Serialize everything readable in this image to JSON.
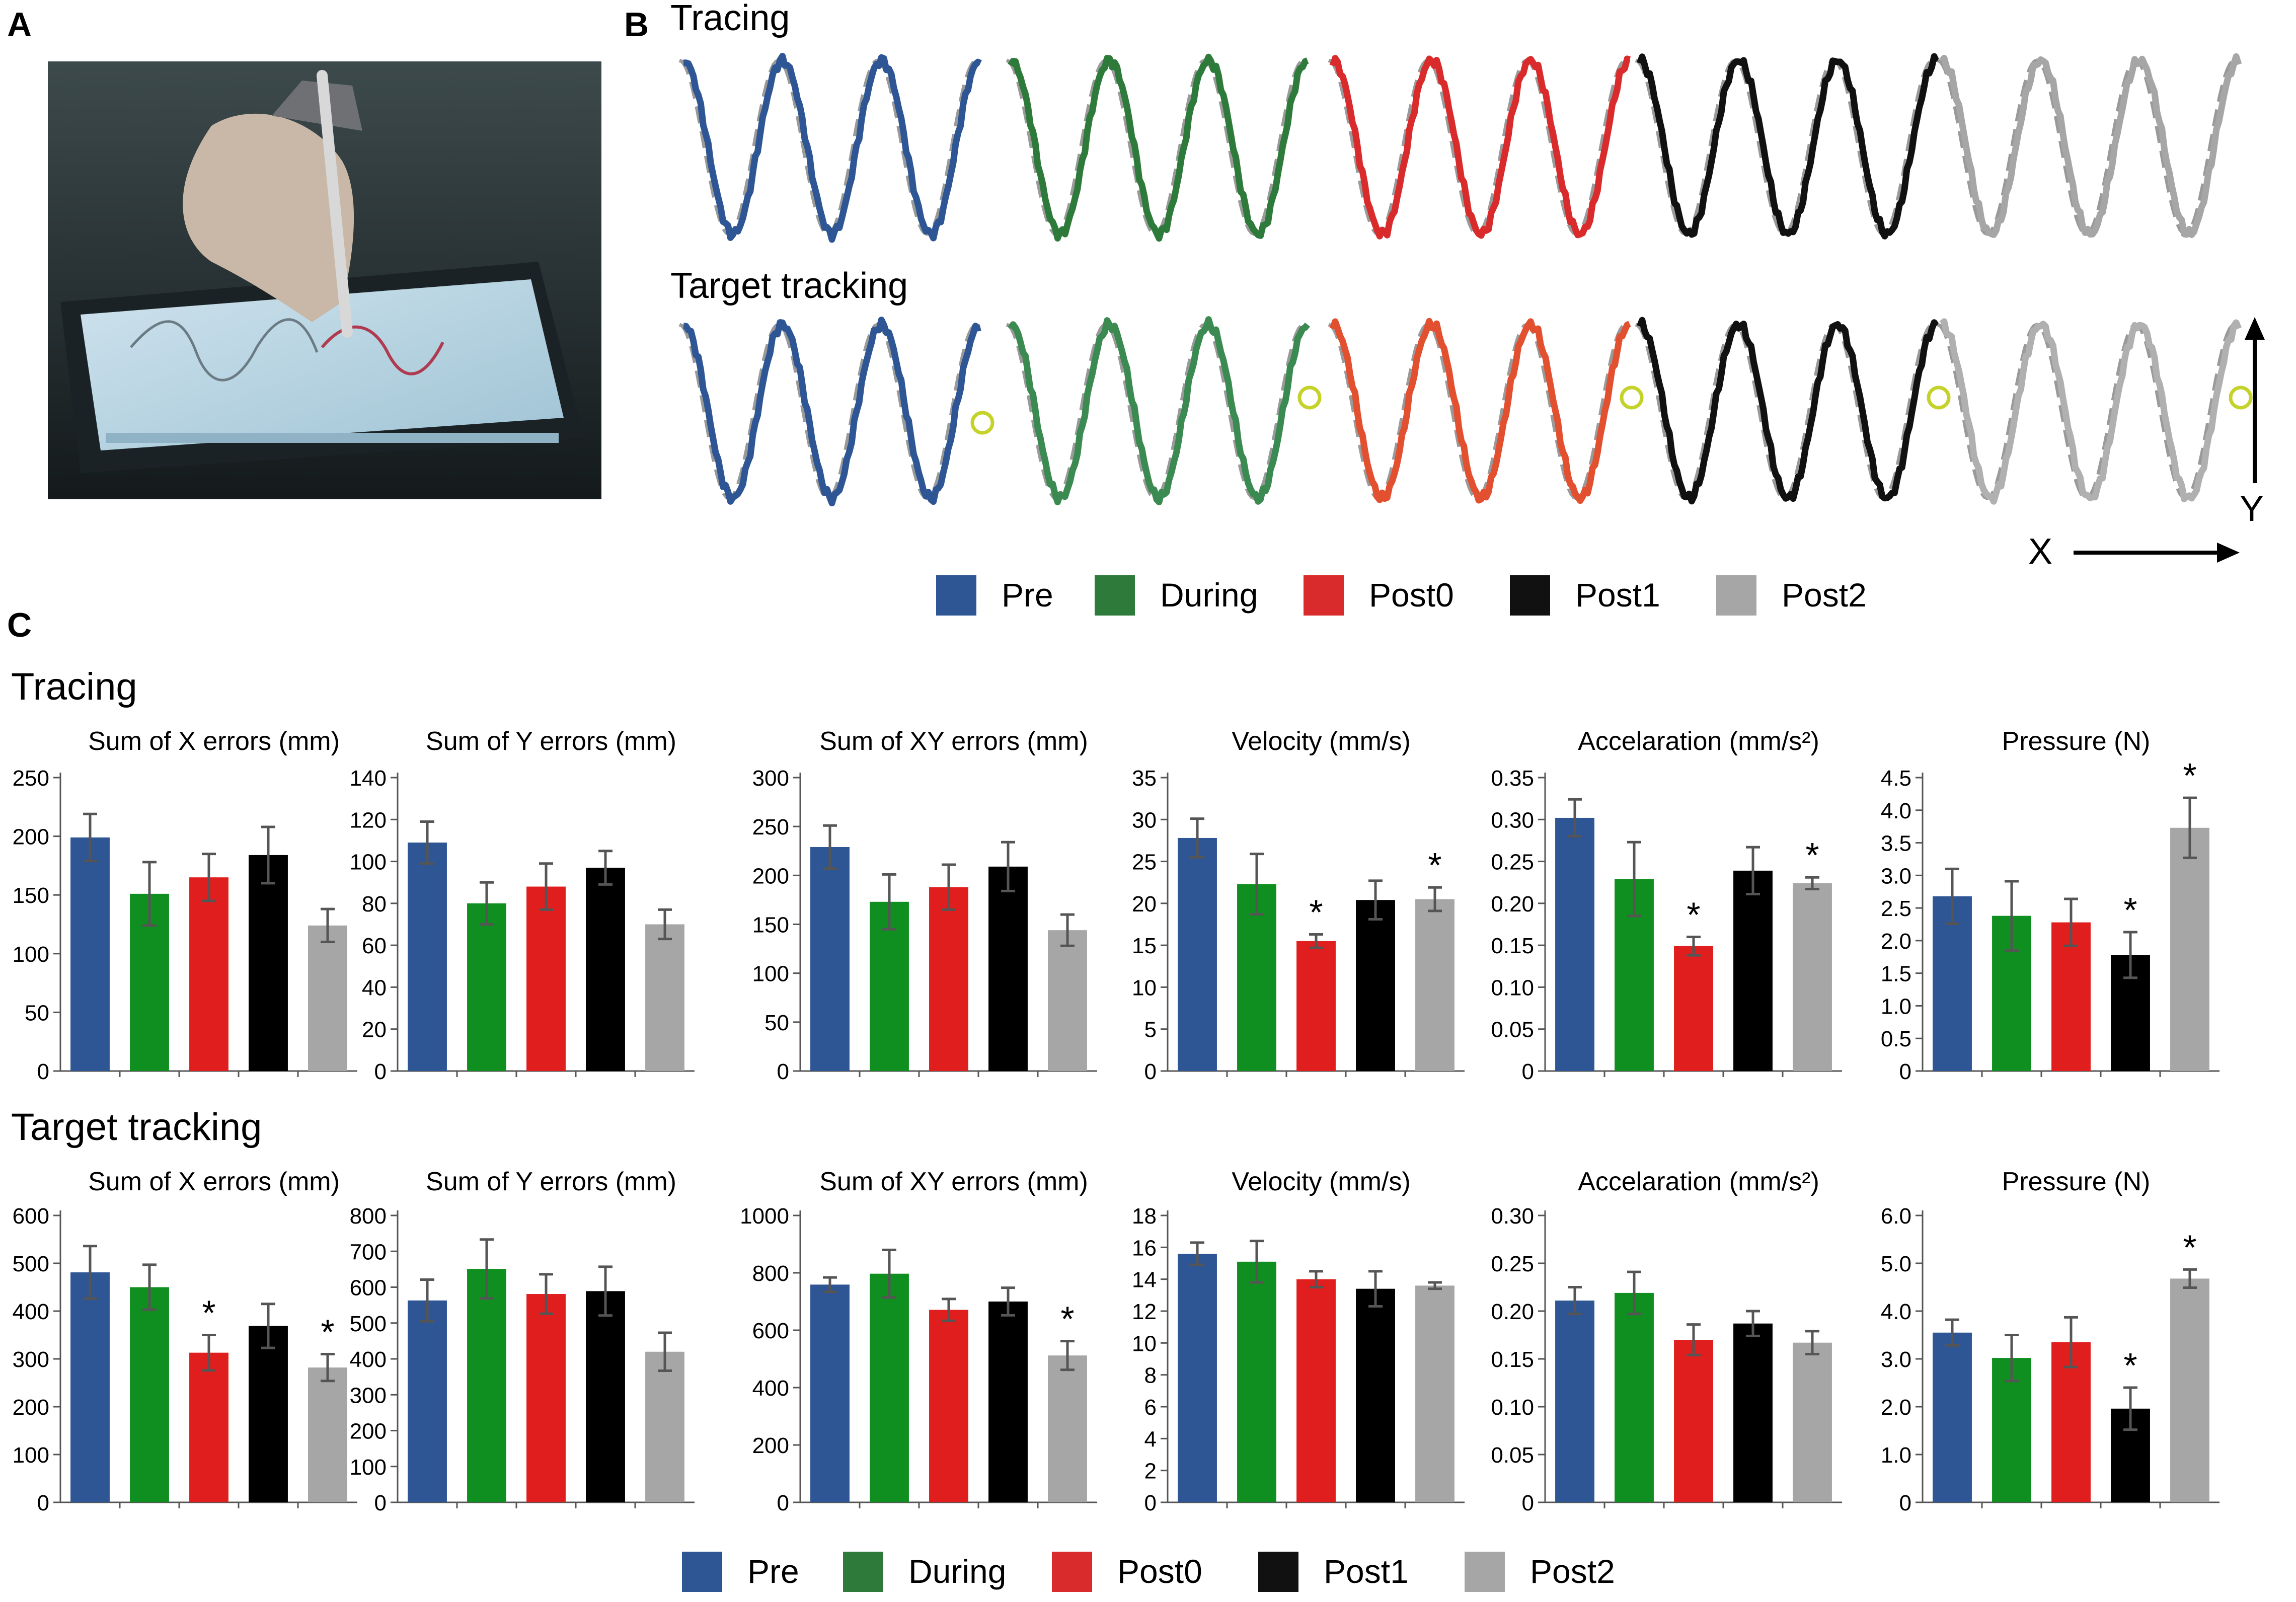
{
  "panels": {
    "a_label": "A",
    "b_label": "B",
    "c_label": "C",
    "b_tracing_title": "Tracing",
    "b_target_title": "Target tracking",
    "c_tracing_title": "Tracing",
    "c_target_title": "Target tracking",
    "axis_x": "X",
    "axis_y": "Y"
  },
  "conditions": [
    {
      "name": "Pre",
      "color": "#2e5594"
    },
    {
      "name": "During",
      "color": "#2d7a3a"
    },
    {
      "name": "Post0",
      "color": "#d92b2b"
    },
    {
      "name": "Post1",
      "color": "#111111"
    },
    {
      "name": "Post2",
      "color": "#a6a6a6"
    }
  ],
  "bar_colors": [
    "#2e5594",
    "#0f8f1f",
    "#e01e1e",
    "#000000",
    "#a6a6a6"
  ],
  "chart_data": [
    {
      "type": "bar",
      "row": "Tracing",
      "title": "Sum of  X errors (mm)",
      "ylim": [
        0,
        250
      ],
      "ticks": [
        "0",
        "50",
        "100",
        "150",
        "200",
        "250"
      ],
      "categories": [
        "Pre",
        "During",
        "Post0",
        "Post1",
        "Post2"
      ],
      "values": [
        199,
        151,
        165,
        184,
        124
      ],
      "errors": [
        20,
        27,
        20,
        24,
        14
      ],
      "significant": [
        false,
        false,
        false,
        false,
        false
      ]
    },
    {
      "type": "bar",
      "row": "Tracing",
      "title": "Sum of  Y errors (mm)",
      "ylim": [
        0,
        140
      ],
      "ticks": [
        "0",
        "20",
        "40",
        "60",
        "80",
        "100",
        "120",
        "140"
      ],
      "categories": [
        "Pre",
        "During",
        "Post0",
        "Post1",
        "Post2"
      ],
      "values": [
        109,
        80,
        88,
        97,
        70
      ],
      "errors": [
        10,
        10,
        11,
        8,
        7
      ],
      "significant": [
        false,
        false,
        false,
        false,
        false
      ]
    },
    {
      "type": "bar",
      "row": "Tracing",
      "title": "Sum of  XY errors (mm)",
      "ylim": [
        0,
        300
      ],
      "ticks": [
        "0",
        "50",
        "100",
        "150",
        "200",
        "250",
        "300"
      ],
      "categories": [
        "Pre",
        "During",
        "Post0",
        "Post1",
        "Post2"
      ],
      "values": [
        229,
        173,
        188,
        209,
        144
      ],
      "errors": [
        22,
        28,
        23,
        25,
        16
      ],
      "significant": [
        false,
        false,
        false,
        false,
        false
      ]
    },
    {
      "type": "bar",
      "row": "Tracing",
      "title": "Velocity (mm/s)",
      "ylim": [
        0,
        35
      ],
      "ticks": [
        "0",
        "5",
        "10",
        "15",
        "20",
        "25",
        "30",
        "35"
      ],
      "categories": [
        "Pre",
        "During",
        "Post0",
        "Post1",
        "Post2"
      ],
      "values": [
        27.8,
        22.3,
        15.5,
        20.4,
        20.5
      ],
      "errors": [
        2.3,
        3.6,
        0.8,
        2.3,
        1.4
      ],
      "significant": [
        false,
        false,
        true,
        false,
        true
      ]
    },
    {
      "type": "bar",
      "row": "Tracing",
      "title": "Accelaration (mm/s²)",
      "ylim": [
        0,
        0.35
      ],
      "ticks": [
        "0",
        "0.05",
        "0.10",
        "0.15",
        "0.20",
        "0.25",
        "0.30",
        "0.35"
      ],
      "categories": [
        "Pre",
        "During",
        "Post0",
        "Post1",
        "Post2"
      ],
      "values": [
        0.302,
        0.229,
        0.149,
        0.239,
        0.224
      ],
      "errors": [
        0.022,
        0.044,
        0.011,
        0.028,
        0.007
      ],
      "significant": [
        false,
        false,
        true,
        false,
        true
      ]
    },
    {
      "type": "bar",
      "row": "Tracing",
      "title": "Pressure (N)",
      "ylim": [
        0,
        4.5
      ],
      "ticks": [
        "0",
        "0.5",
        "1.0",
        "1.5",
        "2.0",
        "2.5",
        "3.0",
        "3.5",
        "4.0",
        "4.5"
      ],
      "categories": [
        "Pre",
        "During",
        "Post0",
        "Post1",
        "Post2"
      ],
      "values": [
        2.68,
        2.38,
        2.28,
        1.78,
        3.73
      ],
      "errors": [
        0.42,
        0.53,
        0.36,
        0.35,
        0.46
      ],
      "significant": [
        false,
        false,
        false,
        true,
        true
      ]
    },
    {
      "type": "bar",
      "row": "Target tracking",
      "title": "Sum of  X errors (mm)",
      "ylim": [
        0,
        600
      ],
      "ticks": [
        "0",
        "100",
        "200",
        "300",
        "400",
        "500",
        "600"
      ],
      "categories": [
        "Pre",
        "During",
        "Post0",
        "Post1",
        "Post2"
      ],
      "values": [
        481,
        450,
        313,
        369,
        282
      ],
      "errors": [
        55,
        47,
        37,
        46,
        28
      ],
      "significant": [
        false,
        false,
        true,
        false,
        true
      ]
    },
    {
      "type": "bar",
      "row": "Target tracking",
      "title": "Sum of  Y errors (mm)",
      "ylim": [
        0,
        800
      ],
      "ticks": [
        "0",
        "100",
        "200",
        "300",
        "400",
        "500",
        "600",
        "700",
        "800"
      ],
      "categories": [
        "Pre",
        "During",
        "Post0",
        "Post1",
        "Post2"
      ],
      "values": [
        563,
        651,
        581,
        589,
        420
      ],
      "errors": [
        58,
        82,
        55,
        68,
        53
      ],
      "significant": [
        false,
        false,
        false,
        false,
        false
      ]
    },
    {
      "type": "bar",
      "row": "Target tracking",
      "title": "Sum of  XY errors (mm)",
      "ylim": [
        0,
        1000
      ],
      "ticks": [
        "0",
        "200",
        "400",
        "600",
        "800",
        "1000"
      ],
      "categories": [
        "Pre",
        "During",
        "Post0",
        "Post1",
        "Post2"
      ],
      "values": [
        759,
        797,
        671,
        700,
        512
      ],
      "errors": [
        25,
        83,
        38,
        48,
        50
      ],
      "significant": [
        false,
        false,
        false,
        false,
        true
      ]
    },
    {
      "type": "bar",
      "row": "Target tracking",
      "title": "Velocity (mm/s)",
      "ylim": [
        0,
        18
      ],
      "ticks": [
        "0",
        "2",
        "4",
        "6",
        "8",
        "10",
        "12",
        "14",
        "16",
        "18"
      ],
      "categories": [
        "Pre",
        "During",
        "Post0",
        "Post1",
        "Post2"
      ],
      "values": [
        15.6,
        15.1,
        14.0,
        13.4,
        13.6
      ],
      "errors": [
        0.7,
        1.3,
        0.5,
        1.1,
        0.2
      ],
      "significant": [
        false,
        false,
        false,
        false,
        false
      ]
    },
    {
      "type": "bar",
      "row": "Target tracking",
      "title": "Accelaration (mm/s²)",
      "ylim": [
        0,
        0.3
      ],
      "ticks": [
        "0",
        "0.05",
        "0.10",
        "0.15",
        "0.20",
        "0.25",
        "0.30"
      ],
      "categories": [
        "Pre",
        "During",
        "Post0",
        "Post1",
        "Post2"
      ],
      "values": [
        0.211,
        0.219,
        0.17,
        0.187,
        0.167
      ],
      "errors": [
        0.014,
        0.022,
        0.016,
        0.013,
        0.012
      ],
      "significant": [
        false,
        false,
        false,
        false,
        false
      ]
    },
    {
      "type": "bar",
      "row": "Target tracking",
      "title": "Pressure (N)",
      "ylim": [
        0,
        6.0
      ],
      "ticks": [
        "0",
        "1.0",
        "2.0",
        "3.0",
        "4.0",
        "5.0",
        "6.0"
      ],
      "categories": [
        "Pre",
        "During",
        "Post0",
        "Post1",
        "Post2"
      ],
      "values": [
        3.55,
        3.02,
        3.35,
        1.96,
        4.68
      ],
      "errors": [
        0.27,
        0.48,
        0.52,
        0.44,
        0.19
      ],
      "significant": [
        false,
        false,
        false,
        true,
        true
      ]
    }
  ]
}
